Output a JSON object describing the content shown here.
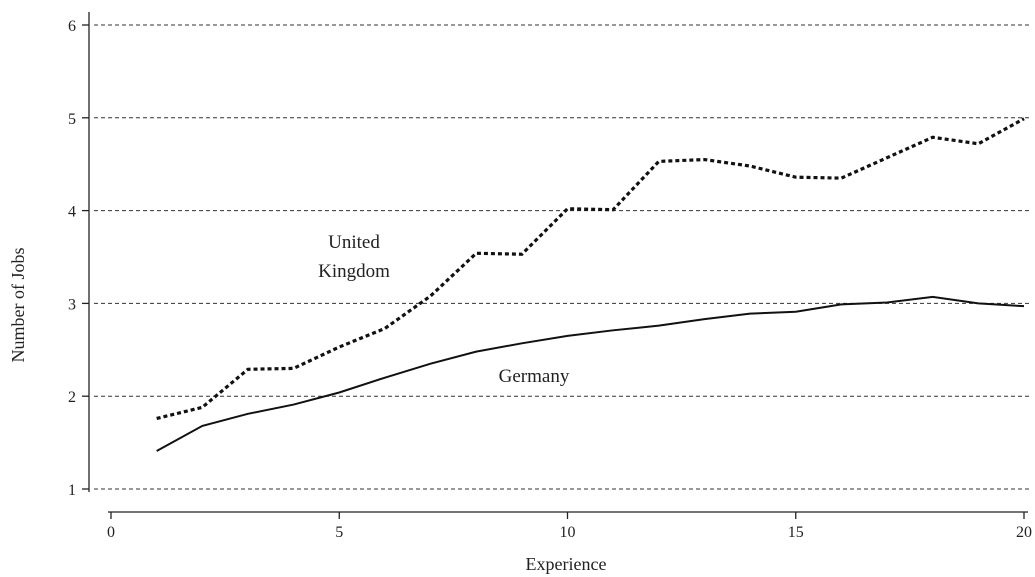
{
  "chart_data": {
    "type": "line",
    "xlabel": "Experience",
    "ylabel": "Number of Jobs",
    "xlim": [
      0,
      20
    ],
    "ylim": [
      1,
      6
    ],
    "xticks": [
      "0",
      "5",
      "10",
      "15",
      "20"
    ],
    "yticks": [
      "1",
      "2",
      "3",
      "4",
      "5",
      "6"
    ],
    "grid": "horizontal dashed",
    "legend": "none",
    "annotations": {
      "uk_line1": "United",
      "uk_line2": "Kingdom",
      "germany": "Germany"
    },
    "x": [
      1,
      2,
      3,
      4,
      5,
      6,
      7,
      8,
      9,
      10,
      11,
      12,
      13,
      14,
      15,
      16,
      17,
      18,
      19,
      20
    ],
    "series": [
      {
        "style": "dotted",
        "values": [
          1.76,
          1.88,
          2.29,
          2.3,
          2.53,
          2.73,
          3.08,
          3.54,
          3.53,
          4.02,
          4.01,
          4.53,
          4.55,
          4.48,
          4.36,
          4.35,
          4.57,
          4.79,
          4.72,
          4.99
        ]
      },
      {
        "style": "solid",
        "values": [
          1.41,
          1.68,
          1.81,
          1.91,
          2.04,
          2.2,
          2.35,
          2.48,
          2.57,
          2.65,
          2.71,
          2.76,
          2.83,
          2.89,
          2.91,
          2.99,
          3.01,
          3.07,
          3.0,
          2.97
        ]
      }
    ],
    "colors": {
      "line": "#111111",
      "grid": "#333333",
      "axis": "#222222"
    }
  }
}
